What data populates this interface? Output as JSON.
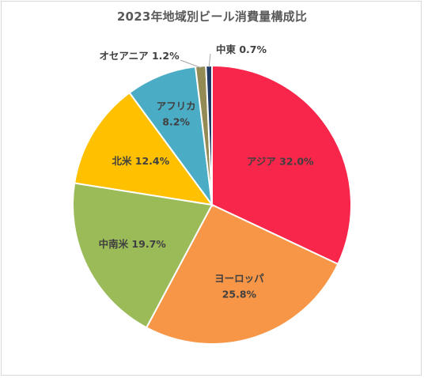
{
  "chart_data": {
    "type": "pie",
    "title": "2023年地域別ビール消費量構成比",
    "slices": [
      {
        "label": "アジア",
        "value": 32.0,
        "value_text": "32.0%",
        "color": "#f8264a"
      },
      {
        "label": "ヨーロッパ",
        "value": 25.8,
        "value_text": "25.8%",
        "color": "#f79646"
      },
      {
        "label": "中南米",
        "value": 19.7,
        "value_text": "19.7%",
        "color": "#9bbb59"
      },
      {
        "label": "北米",
        "value": 12.4,
        "value_text": "12.4%",
        "color": "#ffc000"
      },
      {
        "label": "アフリカ",
        "value": 8.2,
        "value_text": "8.2%",
        "color": "#4bacc6"
      },
      {
        "label": "オセアニア",
        "value": 1.2,
        "value_text": "1.2%",
        "color": "#948a54"
      },
      {
        "label": "中東",
        "value": 0.7,
        "value_text": "0.7%",
        "color": "#1f3864"
      }
    ],
    "start_angle": "12 o'clock",
    "direction": "clockwise",
    "legend": "none"
  }
}
